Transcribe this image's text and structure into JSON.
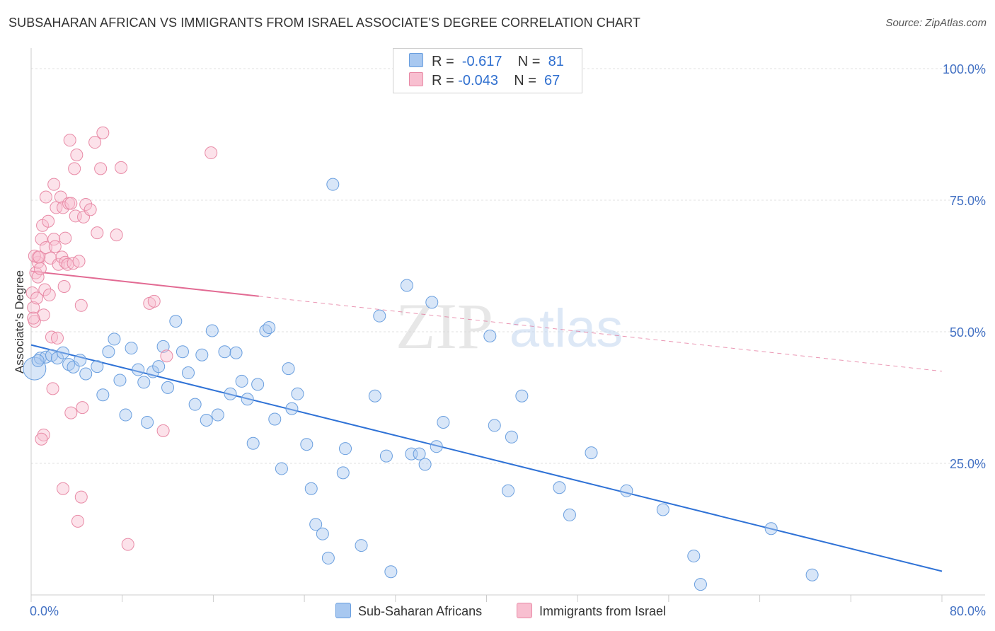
{
  "title": "SUBSAHARAN AFRICAN VS IMMIGRANTS FROM ISRAEL ASSOCIATE'S DEGREE CORRELATION CHART",
  "source": "Source: ZipAtlas.com",
  "watermark": {
    "zip": "ZIP",
    "atlas": "atlas"
  },
  "legend": {
    "rows": [
      {
        "r_label": "R =",
        "r_value": "-0.617",
        "n_label": "N =",
        "n_value": "81",
        "color": "#a8c8f0",
        "border": "#6a9fdf"
      },
      {
        "r_label": "R =",
        "r_value": "-0.043",
        "n_label": "N =",
        "n_value": "67",
        "color": "#f8bfd0",
        "border": "#e88aa6"
      }
    ]
  },
  "bottom_legend": [
    {
      "label": "Sub-Saharan Africans",
      "color": "#a8c8f0",
      "border": "#6a9fdf"
    },
    {
      "label": "Immigrants from Israel",
      "color": "#f8bfd0",
      "border": "#e88aa6"
    }
  ],
  "chart_data": {
    "type": "scatter",
    "ylabel": "Associate's Degree",
    "xlim": [
      0,
      80
    ],
    "ylim": [
      0,
      100
    ],
    "x_tick_labels": [
      {
        "value": 0,
        "label": "0.0%"
      },
      {
        "value": 80,
        "label": "80.0%"
      }
    ],
    "y_tick_labels": [
      {
        "value": 25,
        "label": "25.0%"
      },
      {
        "value": 50,
        "label": "50.0%"
      },
      {
        "value": 75,
        "label": "75.0%"
      },
      {
        "value": 100,
        "label": "100.0%"
      }
    ],
    "series": [
      {
        "name": "Sub-Saharan Africans",
        "color": "#6a9fdf",
        "fill": "#a8c8f0",
        "trend": {
          "x1": 0,
          "y1": 47.5,
          "x2": 80,
          "y2": 4.5,
          "dashed_from": null
        },
        "points": [
          [
            0.3,
            43.0
          ],
          [
            0.8,
            45.0
          ],
          [
            1.3,
            45.2
          ],
          [
            1.8,
            45.5
          ],
          [
            2.3,
            45.0
          ],
          [
            2.8,
            46.0
          ],
          [
            3.3,
            43.8
          ],
          [
            3.7,
            43.3
          ],
          [
            4.3,
            44.6
          ],
          [
            4.8,
            42.0
          ],
          [
            5.8,
            43.4
          ],
          [
            6.3,
            38.0
          ],
          [
            6.8,
            46.2
          ],
          [
            7.3,
            48.6
          ],
          [
            7.8,
            40.8
          ],
          [
            8.3,
            34.2
          ],
          [
            8.8,
            46.9
          ],
          [
            9.4,
            42.8
          ],
          [
            9.9,
            40.4
          ],
          [
            10.2,
            32.8
          ],
          [
            10.7,
            42.4
          ],
          [
            11.2,
            43.4
          ],
          [
            11.6,
            47.2
          ],
          [
            12.0,
            39.4
          ],
          [
            12.7,
            52.0
          ],
          [
            13.3,
            46.2
          ],
          [
            13.8,
            42.2
          ],
          [
            14.4,
            36.2
          ],
          [
            15.0,
            45.6
          ],
          [
            15.4,
            33.2
          ],
          [
            15.9,
            50.2
          ],
          [
            16.4,
            34.2
          ],
          [
            17.0,
            46.2
          ],
          [
            17.5,
            38.2
          ],
          [
            18.0,
            46.0
          ],
          [
            18.5,
            40.6
          ],
          [
            19.0,
            37.2
          ],
          [
            19.5,
            28.8
          ],
          [
            19.9,
            40.0
          ],
          [
            20.6,
            50.2
          ],
          [
            20.9,
            50.8
          ],
          [
            21.4,
            33.4
          ],
          [
            22.0,
            24.0
          ],
          [
            22.6,
            43.0
          ],
          [
            22.9,
            35.4
          ],
          [
            23.4,
            38.2
          ],
          [
            24.2,
            28.6
          ],
          [
            24.6,
            20.2
          ],
          [
            25.0,
            13.4
          ],
          [
            25.6,
            11.6
          ],
          [
            26.1,
            7.0
          ],
          [
            26.5,
            78.0
          ],
          [
            27.4,
            23.2
          ],
          [
            27.6,
            27.8
          ],
          [
            29.0,
            9.4
          ],
          [
            30.2,
            37.8
          ],
          [
            30.6,
            53.0
          ],
          [
            31.2,
            26.4
          ],
          [
            31.6,
            4.4
          ],
          [
            33.0,
            58.8
          ],
          [
            33.4,
            26.8
          ],
          [
            34.1,
            26.8
          ],
          [
            34.6,
            24.8
          ],
          [
            35.2,
            55.6
          ],
          [
            35.6,
            28.2
          ],
          [
            36.2,
            32.8
          ],
          [
            40.3,
            49.2
          ],
          [
            40.7,
            32.2
          ],
          [
            41.9,
            19.8
          ],
          [
            42.2,
            30.0
          ],
          [
            43.1,
            37.8
          ],
          [
            46.4,
            20.4
          ],
          [
            47.3,
            15.2
          ],
          [
            49.2,
            27.0
          ],
          [
            52.3,
            19.8
          ],
          [
            55.5,
            16.2
          ],
          [
            58.2,
            7.4
          ],
          [
            58.8,
            2.0
          ],
          [
            65.0,
            12.6
          ],
          [
            68.6,
            3.8
          ],
          [
            0.6,
            44.5
          ]
        ],
        "sizes": {
          "0": 20,
          "80": 14
        }
      },
      {
        "name": "Immigrants from Israel",
        "color": "#e88aa6",
        "fill": "#f8bfd0",
        "trend": {
          "x1": 0,
          "y1": 61.5,
          "x2": 80,
          "y2": 42.5,
          "dashed_from": 20
        },
        "points": [
          [
            0.1,
            57.4
          ],
          [
            0.2,
            54.6
          ],
          [
            0.3,
            52.0
          ],
          [
            0.4,
            61.2
          ],
          [
            0.5,
            56.4
          ],
          [
            0.6,
            63.2
          ],
          [
            0.6,
            60.4
          ],
          [
            0.6,
            64.2
          ],
          [
            0.8,
            62.0
          ],
          [
            0.9,
            67.6
          ],
          [
            1.0,
            70.2
          ],
          [
            1.1,
            53.2
          ],
          [
            1.2,
            58.0
          ],
          [
            1.3,
            66.0
          ],
          [
            1.3,
            75.6
          ],
          [
            1.5,
            71.0
          ],
          [
            1.6,
            57.0
          ],
          [
            1.7,
            64.0
          ],
          [
            1.8,
            49.0
          ],
          [
            1.9,
            39.2
          ],
          [
            2.0,
            78.0
          ],
          [
            2.0,
            67.6
          ],
          [
            2.1,
            66.2
          ],
          [
            2.2,
            73.6
          ],
          [
            2.3,
            48.8
          ],
          [
            2.4,
            62.8
          ],
          [
            2.6,
            75.6
          ],
          [
            2.7,
            64.2
          ],
          [
            2.8,
            73.6
          ],
          [
            2.8,
            20.2
          ],
          [
            2.9,
            58.6
          ],
          [
            3.0,
            67.8
          ],
          [
            3.0,
            63.2
          ],
          [
            3.2,
            62.8
          ],
          [
            3.3,
            74.4
          ],
          [
            3.4,
            86.4
          ],
          [
            3.5,
            34.6
          ],
          [
            3.5,
            74.4
          ],
          [
            3.7,
            63.0
          ],
          [
            3.8,
            81.0
          ],
          [
            3.9,
            72.0
          ],
          [
            4.0,
            83.6
          ],
          [
            4.1,
            14.0
          ],
          [
            4.2,
            63.4
          ],
          [
            4.4,
            18.6
          ],
          [
            4.4,
            55.0
          ],
          [
            4.5,
            35.6
          ],
          [
            4.6,
            71.8
          ],
          [
            4.8,
            74.2
          ],
          [
            5.2,
            73.2
          ],
          [
            5.6,
            86.0
          ],
          [
            5.8,
            68.8
          ],
          [
            6.1,
            81.0
          ],
          [
            6.3,
            87.8
          ],
          [
            7.5,
            68.4
          ],
          [
            7.9,
            81.2
          ],
          [
            8.5,
            9.6
          ],
          [
            10.4,
            55.4
          ],
          [
            10.8,
            55.8
          ],
          [
            11.6,
            31.2
          ],
          [
            11.9,
            45.4
          ],
          [
            15.8,
            84.0
          ],
          [
            0.3,
            64.4
          ],
          [
            1.1,
            30.4
          ],
          [
            0.9,
            29.6
          ],
          [
            0.2,
            52.6
          ],
          [
            0.7,
            64.2
          ]
        ]
      }
    ]
  }
}
